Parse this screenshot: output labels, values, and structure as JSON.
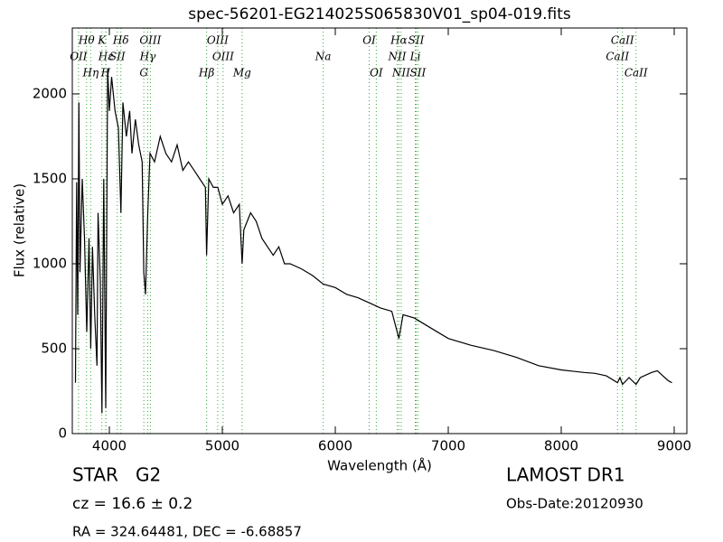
{
  "chart_data": {
    "type": "line",
    "title": "spec-56201-EG214025S065830V01_sp04-019.fits",
    "x_label": "Wavelength (Å)",
    "y_label": "Flux (relative)",
    "xlim": [
      3672,
      9112
    ],
    "ylim": [
      0,
      2388
    ],
    "xticks": [
      4000,
      5000,
      6000,
      7000,
      8000,
      9000
    ],
    "yticks": [
      0,
      500,
      1000,
      1500,
      2000
    ],
    "color": "#000000",
    "line_color": "#33aa33",
    "x": [
      3700,
      3710,
      3720,
      3730,
      3740,
      3760,
      3780,
      3800,
      3820,
      3835,
      3850,
      3870,
      3890,
      3900,
      3920,
      3934,
      3950,
      3968,
      3985,
      4000,
      4020,
      4050,
      4080,
      4102,
      4120,
      4150,
      4180,
      4200,
      4230,
      4260,
      4290,
      4305,
      4320,
      4340,
      4360,
      4400,
      4450,
      4500,
      4550,
      4600,
      4650,
      4700,
      4750,
      4800,
      4850,
      4861,
      4880,
      4920,
      4960,
      5000,
      5050,
      5100,
      5150,
      5175,
      5190,
      5250,
      5300,
      5350,
      5400,
      5450,
      5500,
      5550,
      5600,
      5700,
      5800,
      5893,
      6000,
      6100,
      6200,
      6300,
      6400,
      6500,
      6563,
      6600,
      6700,
      6800,
      6900,
      7000,
      7200,
      7400,
      7600,
      7800,
      8000,
      8200,
      8300,
      8400,
      8498,
      8520,
      8542,
      8600,
      8662,
      8700,
      8800,
      8850,
      8900,
      8950,
      8980
    ],
    "values": [
      300,
      1480,
      700,
      1950,
      950,
      1500,
      1150,
      600,
      1150,
      500,
      1100,
      700,
      400,
      1300,
      900,
      120,
      1500,
      150,
      2150,
      1900,
      2100,
      1900,
      1800,
      1300,
      1950,
      1750,
      1900,
      1650,
      1850,
      1700,
      1600,
      950,
      820,
      1300,
      1650,
      1600,
      1750,
      1650,
      1600,
      1700,
      1550,
      1600,
      1550,
      1500,
      1450,
      1050,
      1500,
      1450,
      1450,
      1350,
      1400,
      1300,
      1350,
      1000,
      1200,
      1300,
      1250,
      1150,
      1100,
      1050,
      1100,
      1000,
      1000,
      970,
      930,
      880,
      860,
      820,
      800,
      770,
      740,
      720,
      560,
      700,
      680,
      640,
      600,
      560,
      520,
      490,
      450,
      400,
      375,
      360,
      355,
      340,
      300,
      330,
      290,
      330,
      290,
      330,
      360,
      370,
      340,
      310,
      300
    ],
    "lines": [
      {
        "label": "Hθ",
        "wavelength": 3798
      },
      {
        "label": "OII",
        "wavelength": 3727
      },
      {
        "label": "Hη",
        "wavelength": 3835
      },
      {
        "label": "K",
        "wavelength": 3934
      },
      {
        "label": "Hε",
        "wavelength": 3970
      },
      {
        "label": "H",
        "wavelength": 3968
      },
      {
        "label": "Hδ",
        "wavelength": 4102
      },
      {
        "label": "SII",
        "wavelength": 4070
      },
      {
        "label": "G",
        "wavelength": 4305
      },
      {
        "label": "OIII",
        "wavelength": 4363
      },
      {
        "label": "Hγ",
        "wavelength": 4340
      },
      {
        "label": "Hβ",
        "wavelength": 4861
      },
      {
        "label": "OIII",
        "wavelength": 4959
      },
      {
        "label": "OIII",
        "wavelength": 5007
      },
      {
        "label": "Mg",
        "wavelength": 5175
      },
      {
        "label": "OI",
        "wavelength": 6300
      },
      {
        "label": "Na",
        "wavelength": 5893
      },
      {
        "label": "OI",
        "wavelength": 6363
      },
      {
        "label": "Hα",
        "wavelength": 6563
      },
      {
        "label": "NII",
        "wavelength": 6548
      },
      {
        "label": "NII",
        "wavelength": 6583
      },
      {
        "label": "SII",
        "wavelength": 6716
      },
      {
        "label": "Li",
        "wavelength": 6708
      },
      {
        "label": "SII",
        "wavelength": 6731
      },
      {
        "label": "CaII",
        "wavelength": 8542
      },
      {
        "label": "CaII",
        "wavelength": 8498
      },
      {
        "label": "CaII",
        "wavelength": 8662
      }
    ],
    "annotations": [
      "STAR   G2",
      "cz = 16.6 ± 0.2",
      "RA = 324.64481, DEC = -6.68857",
      "LAMOST DR1",
      "Obs-Date:20120930"
    ]
  }
}
